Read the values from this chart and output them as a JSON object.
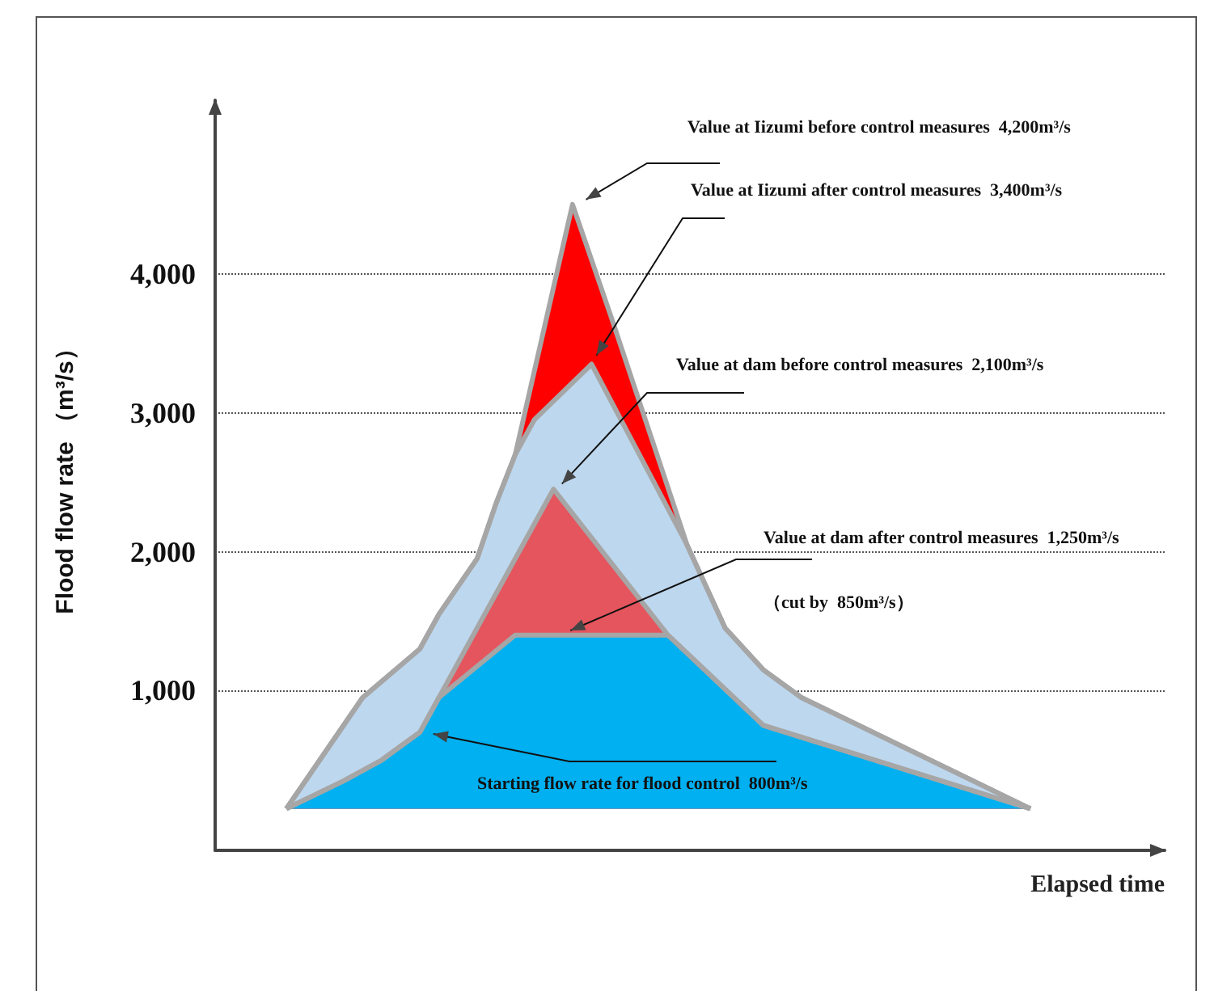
{
  "chart_data": {
    "type": "area",
    "xlabel": "Elapsed time",
    "ylabel": "Flood flow rate （m³/s）",
    "categories": [
      null,
      null,
      null,
      null,
      null,
      null,
      null,
      null,
      null,
      null,
      null,
      null,
      null,
      null,
      null,
      null,
      null,
      null,
      null,
      null,
      null,
      null,
      null,
      null,
      null,
      null,
      null,
      null,
      null,
      null,
      null,
      null,
      null,
      null,
      null,
      null,
      null,
      null,
      null,
      null
    ],
    "ylim": [
      -150,
      5250
    ],
    "yticks": [
      {
        "value": 1000,
        "label": "1,000"
      },
      {
        "value": 2000,
        "label": "2,000"
      },
      {
        "value": 3000,
        "label": "3,000"
      },
      {
        "value": 4000,
        "label": "4,000"
      }
    ],
    "tick_labels": "y",
    "grid": "y",
    "marker": "none",
    "series": [
      {
        "color": "#ff0000",
        "values": [
          150,
          null,
          null,
          null,
          950,
          null,
          null,
          1300,
          1550,
          null,
          1950,
          2350,
          2700,
          null,
          null,
          4500,
          null,
          3700,
          null,
          null,
          null,
          2050,
          null,
          1450,
          null,
          1150,
          null,
          950,
          null,
          null,
          null,
          null,
          null,
          null,
          null,
          null,
          null,
          null,
          null,
          150
        ]
      },
      {
        "color": "#bdd7ee",
        "values": [
          150,
          null,
          null,
          null,
          950,
          null,
          null,
          1300,
          1550,
          null,
          1950,
          2350,
          2700,
          2950,
          null,
          null,
          3350,
          null,
          null,
          null,
          null,
          2050,
          null,
          1450,
          null,
          1150,
          null,
          950,
          null,
          null,
          null,
          null,
          null,
          null,
          null,
          null,
          null,
          null,
          null,
          150
        ]
      },
      {
        "color": "#e5555e",
        "values": [
          150,
          null,
          null,
          350,
          null,
          500,
          null,
          700,
          950,
          null,
          null,
          null,
          null,
          null,
          2450,
          null,
          null,
          null,
          null,
          null,
          1400,
          null,
          null,
          null,
          null,
          750,
          null,
          null,
          null,
          null,
          null,
          null,
          null,
          null,
          null,
          null,
          null,
          null,
          null,
          150
        ]
      },
      {
        "color": "#00b0f0",
        "values": [
          150,
          null,
          null,
          350,
          null,
          500,
          null,
          700,
          950,
          null,
          null,
          null,
          1400,
          null,
          null,
          null,
          null,
          null,
          null,
          null,
          1400,
          null,
          null,
          null,
          null,
          750,
          null,
          null,
          null,
          null,
          null,
          null,
          null,
          null,
          null,
          null,
          null,
          null,
          null,
          150
        ]
      }
    ],
    "annotations": [
      "Value at Iizumi before control measures  4,200m³/s",
      "Value at Iizumi after control measures  3,400m³/s",
      "Value at dam before control measures  2,100m³/s",
      "Value at dam after control measures  1,250m³/s",
      "（cut by  850m³/s）",
      "Starting flow rate for flood control  800m³/s"
    ]
  }
}
